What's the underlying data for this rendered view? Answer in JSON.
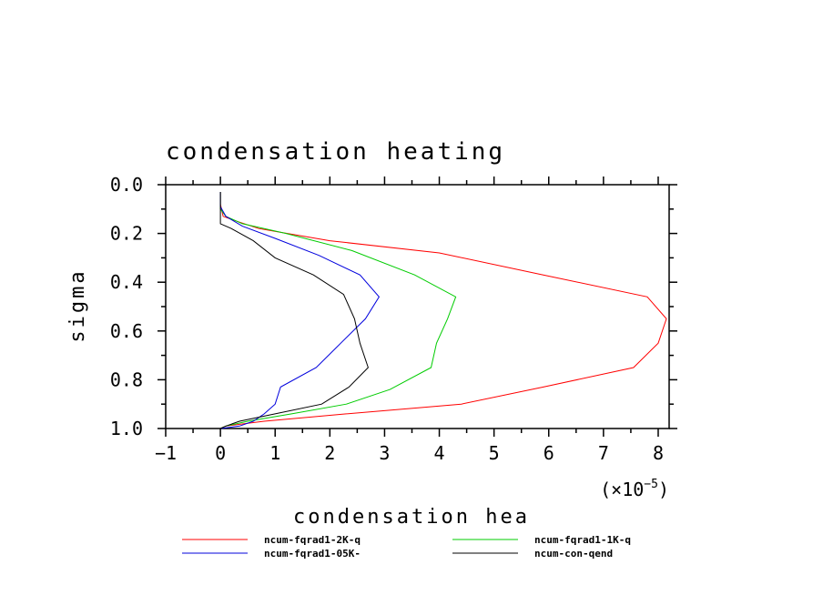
{
  "chart_data": {
    "type": "line",
    "title": "condensation heating",
    "xlabel": "condensation hea",
    "ylabel": "sigma",
    "x_multiplier": "(×10",
    "x_multiplier_exp": "−5",
    "x_multiplier_close": ")",
    "xlim": [
      -1,
      8.2
    ],
    "ylim": [
      1.0,
      0.0
    ],
    "y_inverted": true,
    "xticks": [
      "−1",
      "0",
      "1",
      "2",
      "3",
      "4",
      "5",
      "6",
      "7",
      "8"
    ],
    "yticks": [
      "0.0",
      "0.2",
      "0.4",
      "0.6",
      "0.8",
      "1.0"
    ],
    "grid": false,
    "legend_placement": "bottom",
    "series": [
      {
        "name": "ncum-fqrad1-2K-q",
        "color": "#ff0000",
        "points": [
          [
            0,
            0.03
          ],
          [
            0,
            0.08
          ],
          [
            0.05,
            0.13
          ],
          [
            0.3,
            0.15
          ],
          [
            0.7,
            0.18
          ],
          [
            2.0,
            0.23
          ],
          [
            4.0,
            0.28
          ],
          [
            5.9,
            0.37
          ],
          [
            7.8,
            0.46
          ],
          [
            8.15,
            0.55
          ],
          [
            8.0,
            0.65
          ],
          [
            7.55,
            0.75
          ],
          [
            5.9,
            0.83
          ],
          [
            4.4,
            0.9
          ],
          [
            2.3,
            0.94
          ],
          [
            0.8,
            0.97
          ],
          [
            0.1,
            0.99
          ],
          [
            0,
            1.0
          ]
        ]
      },
      {
        "name": "ncum-fqrad1-1K-q",
        "color": "#00cc00",
        "points": [
          [
            0,
            0.03
          ],
          [
            0,
            0.1
          ],
          [
            0.1,
            0.13
          ],
          [
            0.4,
            0.16
          ],
          [
            1.2,
            0.2
          ],
          [
            2.4,
            0.27
          ],
          [
            3.55,
            0.37
          ],
          [
            4.3,
            0.46
          ],
          [
            4.15,
            0.55
          ],
          [
            3.95,
            0.65
          ],
          [
            3.85,
            0.75
          ],
          [
            3.1,
            0.84
          ],
          [
            2.3,
            0.9
          ],
          [
            1.3,
            0.94
          ],
          [
            0.5,
            0.97
          ],
          [
            0.1,
            0.99
          ],
          [
            0,
            1.0
          ]
        ]
      },
      {
        "name": "ncum-fqrad1-05K-",
        "color": "#0000dd",
        "points": [
          [
            0,
            0.03
          ],
          [
            0,
            0.09
          ],
          [
            0.1,
            0.13
          ],
          [
            0.4,
            0.17
          ],
          [
            1.0,
            0.22
          ],
          [
            1.8,
            0.29
          ],
          [
            2.55,
            0.37
          ],
          [
            2.9,
            0.46
          ],
          [
            2.65,
            0.55
          ],
          [
            2.2,
            0.65
          ],
          [
            1.75,
            0.75
          ],
          [
            1.1,
            0.83
          ],
          [
            1.0,
            0.9
          ],
          [
            0.8,
            0.94
          ],
          [
            0.6,
            0.97
          ],
          [
            0.35,
            0.99
          ],
          [
            0,
            1.0
          ]
        ]
      },
      {
        "name": "ncum-con-qend",
        "color": "#000000",
        "points": [
          [
            0,
            0.03
          ],
          [
            0,
            0.16
          ],
          [
            0.2,
            0.18
          ],
          [
            0.6,
            0.23
          ],
          [
            1.0,
            0.3
          ],
          [
            1.7,
            0.37
          ],
          [
            2.25,
            0.45
          ],
          [
            2.45,
            0.55
          ],
          [
            2.55,
            0.65
          ],
          [
            2.7,
            0.75
          ],
          [
            2.35,
            0.83
          ],
          [
            1.85,
            0.9
          ],
          [
            1.0,
            0.94
          ],
          [
            0.35,
            0.97
          ],
          [
            0.1,
            0.99
          ],
          [
            0,
            1.0
          ]
        ]
      }
    ]
  }
}
